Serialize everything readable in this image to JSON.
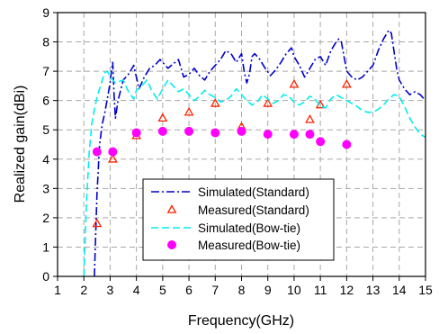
{
  "chart_data": {
    "type": "line",
    "xlabel": "Frequency(GHz)",
    "ylabel": "Realized gain(dBi)",
    "xlim": [
      1,
      15
    ],
    "ylim": [
      0,
      9
    ],
    "xticks": [
      "1",
      "2",
      "3",
      "4",
      "5",
      "6",
      "7",
      "8",
      "9",
      "10",
      "11",
      "12",
      "13",
      "14",
      "15"
    ],
    "yticks": [
      "0",
      "1",
      "2",
      "3",
      "4",
      "5",
      "6",
      "7",
      "8",
      "9"
    ],
    "grid": true,
    "legend_position": "center-bottom",
    "series": [
      {
        "name": "Simulated(Standard)",
        "style": "dashdot",
        "color": "#0000cc",
        "x": [
          2.4,
          2.5,
          2.6,
          2.7,
          2.8,
          2.9,
          3.0,
          3.05,
          3.1,
          3.15,
          3.2,
          3.3,
          3.5,
          3.7,
          3.9,
          4.0,
          4.1,
          4.3,
          4.5,
          4.7,
          4.9,
          5.0,
          5.2,
          5.4,
          5.6,
          5.8,
          6.0,
          6.2,
          6.4,
          6.6,
          6.8,
          7.0,
          7.2,
          7.4,
          7.6,
          7.8,
          8.0,
          8.1,
          8.2,
          8.3,
          8.4,
          8.5,
          8.7,
          8.9,
          9.1,
          9.3,
          9.5,
          9.7,
          9.9,
          10.0,
          10.2,
          10.4,
          10.6,
          10.8,
          11.0,
          11.2,
          11.4,
          11.6,
          11.7,
          11.8,
          11.9,
          12.0,
          12.2,
          12.4,
          12.6,
          12.8,
          13.0,
          13.2,
          13.4,
          13.6,
          13.7,
          13.8,
          13.9,
          14.0,
          14.2,
          14.4,
          14.6,
          14.8,
          15.0
        ],
        "y": [
          0,
          2.8,
          4.5,
          5.2,
          5.6,
          6.1,
          6.6,
          7.0,
          7.3,
          6.2,
          5.4,
          6.0,
          6.7,
          6.9,
          7.2,
          6.8,
          6.4,
          6.8,
          7.1,
          7.2,
          7.4,
          7.3,
          7.1,
          7.25,
          7.4,
          6.8,
          6.9,
          7.1,
          6.85,
          6.7,
          7.0,
          7.2,
          7.4,
          7.7,
          7.6,
          7.3,
          7.6,
          7.0,
          6.6,
          6.9,
          7.5,
          7.6,
          7.4,
          7.1,
          6.85,
          7.05,
          7.3,
          7.6,
          7.8,
          7.5,
          7.2,
          6.8,
          7.1,
          7.4,
          7.5,
          7.2,
          7.7,
          8.0,
          8.1,
          8.0,
          7.5,
          7.0,
          6.8,
          6.7,
          6.8,
          7.0,
          7.2,
          7.7,
          8.1,
          8.4,
          8.3,
          7.7,
          7.1,
          6.7,
          6.4,
          6.2,
          6.3,
          6.2,
          6.0
        ]
      },
      {
        "name": "Measured(Standard)",
        "style": "triangle",
        "color": "#ff2200",
        "x": [
          2.5,
          3.1,
          4.0,
          5.0,
          6.0,
          7.0,
          8.0,
          9.0,
          10.0,
          10.6,
          11.0,
          12.0
        ],
        "y": [
          1.8,
          4.0,
          4.8,
          5.4,
          5.6,
          5.9,
          5.1,
          5.9,
          6.55,
          5.35,
          5.85,
          6.55
        ]
      },
      {
        "name": "Simulated(Bow-tie)",
        "style": "dashed",
        "color": "#00eeee",
        "x": [
          2.0,
          2.1,
          2.2,
          2.3,
          2.4,
          2.5,
          2.6,
          2.7,
          2.8,
          2.9,
          3.0,
          3.2,
          3.5,
          3.7,
          3.9,
          4.0,
          4.2,
          4.4,
          4.6,
          4.8,
          5.0,
          5.2,
          5.4,
          5.6,
          5.8,
          6.0,
          6.2,
          6.4,
          6.6,
          6.8,
          7.0,
          7.2,
          7.4,
          7.6,
          7.8,
          8.0,
          8.2,
          8.4,
          8.6,
          8.8,
          9.0,
          9.2,
          9.4,
          9.6,
          9.8,
          10.0,
          10.2,
          10.4,
          10.6,
          10.8,
          11.0,
          11.2,
          11.4,
          11.6,
          11.8,
          12.0,
          12.2,
          12.4,
          12.6,
          12.8,
          13.0,
          13.2,
          13.4,
          13.6,
          13.8,
          14.0,
          14.2,
          14.4,
          14.6,
          14.8,
          15.0
        ],
        "y": [
          0,
          2.5,
          4.2,
          5.2,
          5.7,
          6.1,
          6.4,
          6.7,
          6.95,
          7.0,
          6.8,
          6.6,
          6.7,
          6.3,
          6.05,
          6.35,
          6.5,
          6.7,
          6.3,
          6.05,
          6.4,
          6.7,
          6.5,
          6.3,
          6.4,
          6.2,
          6.0,
          6.15,
          6.35,
          6.2,
          6.1,
          5.95,
          6.0,
          6.15,
          6.4,
          6.2,
          6.0,
          5.85,
          5.95,
          6.2,
          6.05,
          5.9,
          6.0,
          6.2,
          6.15,
          5.95,
          5.85,
          5.95,
          6.15,
          6.05,
          5.8,
          5.75,
          6.05,
          6.2,
          6.1,
          6.0,
          5.9,
          5.8,
          5.65,
          5.6,
          5.6,
          5.7,
          5.85,
          6.05,
          6.2,
          6.15,
          5.8,
          5.4,
          5.1,
          4.85,
          4.75
        ]
      },
      {
        "name": "Measured(Bow-tie)",
        "style": "circle",
        "color": "#ff00ff",
        "x": [
          2.5,
          3.1,
          4.0,
          5.0,
          6.0,
          7.0,
          8.0,
          9.0,
          10.0,
          10.6,
          11.0,
          12.0
        ],
        "y": [
          4.25,
          4.25,
          4.9,
          4.95,
          4.95,
          4.9,
          4.95,
          4.85,
          4.85,
          4.85,
          4.6,
          4.5
        ]
      }
    ]
  }
}
